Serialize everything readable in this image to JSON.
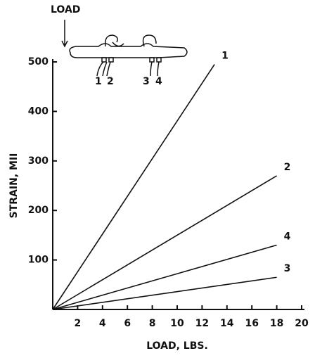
{
  "chart_data": {
    "type": "line",
    "x_label": "LOAD, LBS.",
    "y_label": "STRAIN, MII",
    "annotations": {
      "load": "LOAD",
      "gauges": [
        "1",
        "2",
        "3",
        "4"
      ]
    },
    "series": [
      {
        "name": "1",
        "color": "#111111",
        "x": [
          0,
          13
        ],
        "values": [
          0,
          495
        ]
      },
      {
        "name": "2",
        "color": "#111111",
        "x": [
          0,
          18
        ],
        "values": [
          0,
          270
        ]
      },
      {
        "name": "4",
        "color": "#111111",
        "x": [
          0,
          18
        ],
        "values": [
          0,
          130
        ]
      },
      {
        "name": "3",
        "color": "#111111",
        "x": [
          0,
          18
        ],
        "values": [
          0,
          65
        ]
      }
    ],
    "xlim": [
      0,
      20
    ],
    "xticks": [
      2,
      4,
      6,
      8,
      10,
      12,
      14,
      16,
      18,
      20
    ],
    "ylim": [
      0,
      500
    ],
    "yticks": [
      100,
      200,
      300,
      400,
      500
    ],
    "grid": false
  }
}
